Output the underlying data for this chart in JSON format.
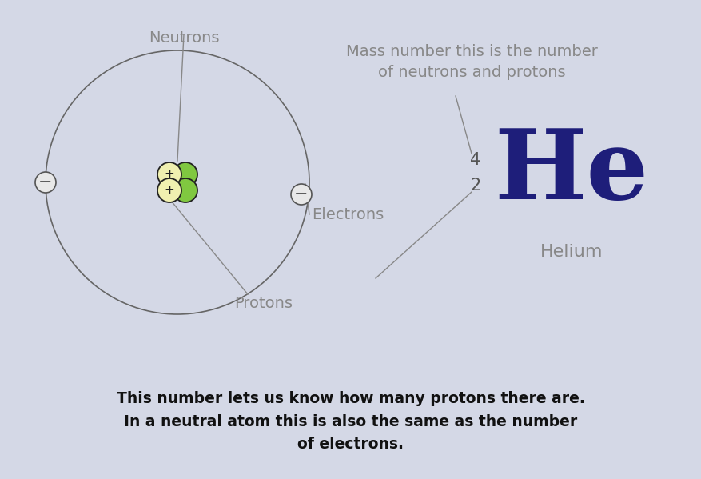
{
  "bg_color": "#d4d8e6",
  "bottom_bg_color": "#c8ccda",
  "he_symbol": "He",
  "he_color": "#1e1e7a",
  "mass_number": "4",
  "atomic_number": "2",
  "number_color": "#555555",
  "element_name": "Helium",
  "element_name_color": "#888888",
  "neutrons_label": "Neutrons",
  "electrons_label": "Electrons",
  "protons_label": "Protons",
  "label_color": "#888888",
  "mass_label_line1": "Mass number this is the number",
  "mass_label_line2": "of neutrons and protons",
  "bottom_text_line1": "This number lets us know how many protons there are.",
  "bottom_text_line2": "In a neutral atom this is also the same as the number",
  "bottom_text_line3": "of electrons.",
  "bottom_text_color": "#111111",
  "orbit_color": "#666666",
  "neutron_green": "#80c840",
  "proton_yellow": "#f0f0b0",
  "proton_outline": "#222222",
  "electron_bg": "#e8e8e8",
  "electron_outline": "#555555",
  "line_color": "#888888",
  "fig_width": 8.78,
  "fig_height": 5.99,
  "dpi": 100
}
